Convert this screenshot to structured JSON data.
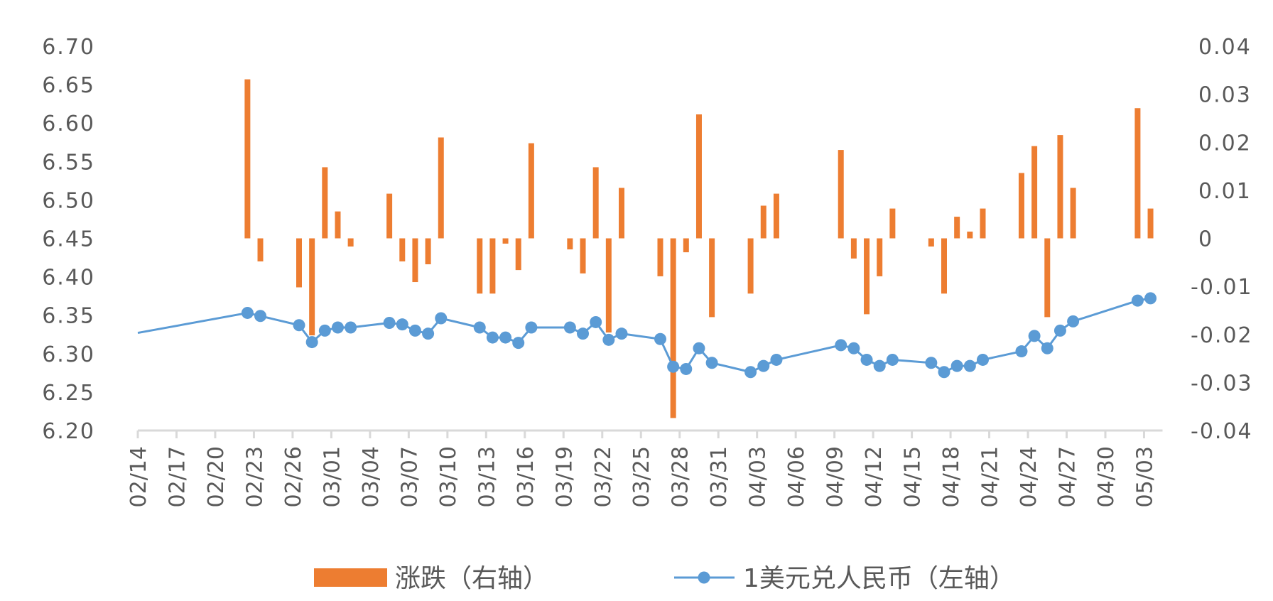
{
  "chart_data": {
    "type": "bar+line",
    "title": "",
    "x_type": "date",
    "x_tick_labels": [
      "02/14",
      "02/17",
      "02/20",
      "02/23",
      "02/26",
      "03/01",
      "03/04",
      "03/07",
      "03/10",
      "03/13",
      "03/16",
      "03/19",
      "03/22",
      "03/25",
      "03/28",
      "03/31",
      "04/03",
      "04/06",
      "04/09",
      "04/12",
      "04/15",
      "04/18",
      "04/21",
      "04/24",
      "04/27",
      "04/30",
      "05/03"
    ],
    "xlim": [
      "02/14",
      "05/03"
    ],
    "left_axis": {
      "ylim": [
        6.2,
        6.7
      ],
      "ticks": [
        "6.70",
        "6.65",
        "6.60",
        "6.55",
        "6.50",
        "6.45",
        "6.40",
        "6.35",
        "6.30",
        "6.25",
        "6.20"
      ]
    },
    "right_axis": {
      "ylim": [
        -0.04,
        0.04
      ],
      "ticks": [
        "0.04",
        "0.03",
        "0.02",
        "0.01",
        "0",
        "-0.01",
        "-0.02",
        "-0.03",
        "-0.04"
      ]
    },
    "grid": false,
    "legend_position": "bottom",
    "series": [
      {
        "name": "涨跌（右轴）",
        "type": "bar",
        "axis": "right",
        "color": "#ED7D31",
        "points": [
          [
            "02/22",
            0.0331
          ],
          [
            "02/23",
            -0.0048
          ],
          [
            "02/26",
            -0.0102
          ],
          [
            "02/27",
            -0.0202
          ],
          [
            "02/28",
            0.0148
          ],
          [
            "03/01",
            0.0056
          ],
          [
            "03/02",
            -0.0017
          ],
          [
            "03/05",
            0.0093
          ],
          [
            "03/06",
            -0.0048
          ],
          [
            "03/07",
            -0.0091
          ],
          [
            "03/08",
            -0.0054
          ],
          [
            "03/09",
            0.021
          ],
          [
            "03/12",
            -0.0115
          ],
          [
            "03/13",
            -0.0115
          ],
          [
            "03/14",
            -0.0011
          ],
          [
            "03/15",
            -0.0066
          ],
          [
            "03/16",
            0.0198
          ],
          [
            "03/19",
            -0.0023
          ],
          [
            "03/20",
            -0.0073
          ],
          [
            "03/21",
            0.0148
          ],
          [
            "03/22",
            -0.0196
          ],
          [
            "03/23",
            0.0105
          ],
          [
            "03/26",
            -0.0079
          ],
          [
            "03/27",
            -0.0374
          ],
          [
            "03/28",
            -0.0029
          ],
          [
            "03/29",
            0.0258
          ],
          [
            "03/30",
            -0.0164
          ],
          [
            "04/02",
            -0.0115
          ],
          [
            "04/03",
            0.0068
          ],
          [
            "04/04",
            0.0093
          ],
          [
            "04/09",
            0.0184
          ],
          [
            "04/10",
            -0.0042
          ],
          [
            "04/11",
            -0.0158
          ],
          [
            "04/12",
            -0.0079
          ],
          [
            "04/13",
            0.0062
          ],
          [
            "04/16",
            -0.0017
          ],
          [
            "04/17",
            -0.0115
          ],
          [
            "04/18",
            0.0045
          ],
          [
            "04/19",
            0.0014
          ],
          [
            "04/20",
            0.0062
          ],
          [
            "04/23",
            0.0136
          ],
          [
            "04/24",
            0.0192
          ],
          [
            "04/25",
            -0.0164
          ],
          [
            "04/26",
            0.0215
          ],
          [
            "04/27",
            0.0105
          ],
          [
            "05/02",
            0.0271
          ],
          [
            "05/03",
            0.0062
          ]
        ]
      },
      {
        "name": "1美元兑人民币（左轴）",
        "type": "line",
        "axis": "left",
        "color": "#5B9BD5",
        "points": [
          [
            "02/14",
            6.327
          ],
          [
            "02/22",
            6.353
          ],
          [
            "02/23",
            6.349
          ],
          [
            "02/26",
            6.337
          ],
          [
            "02/27",
            6.315
          ],
          [
            "02/28",
            6.33
          ],
          [
            "03/01",
            6.334
          ],
          [
            "03/02",
            6.334
          ],
          [
            "03/05",
            6.34
          ],
          [
            "03/06",
            6.338
          ],
          [
            "03/07",
            6.33
          ],
          [
            "03/08",
            6.326
          ],
          [
            "03/09",
            6.346
          ],
          [
            "03/12",
            6.334
          ],
          [
            "03/13",
            6.321
          ],
          [
            "03/14",
            6.321
          ],
          [
            "03/15",
            6.314
          ],
          [
            "03/16",
            6.334
          ],
          [
            "03/19",
            6.334
          ],
          [
            "03/20",
            6.326
          ],
          [
            "03/21",
            6.341
          ],
          [
            "03/22",
            6.318
          ],
          [
            "03/23",
            6.326
          ],
          [
            "03/26",
            6.319
          ],
          [
            "03/27",
            6.283
          ],
          [
            "03/28",
            6.28
          ],
          [
            "03/29",
            6.307
          ],
          [
            "03/30",
            6.288
          ],
          [
            "04/02",
            6.276
          ],
          [
            "04/03",
            6.284
          ],
          [
            "04/04",
            6.292
          ],
          [
            "04/09",
            6.311
          ],
          [
            "04/10",
            6.307
          ],
          [
            "04/11",
            6.292
          ],
          [
            "04/12",
            6.284
          ],
          [
            "04/13",
            6.292
          ],
          [
            "04/16",
            6.288
          ],
          [
            "04/17",
            6.276
          ],
          [
            "04/18",
            6.284
          ],
          [
            "04/19",
            6.284
          ],
          [
            "04/20",
            6.292
          ],
          [
            "04/23",
            6.303
          ],
          [
            "04/24",
            6.323
          ],
          [
            "04/25",
            6.307
          ],
          [
            "04/26",
            6.33
          ],
          [
            "04/27",
            6.342
          ],
          [
            "05/02",
            6.369
          ],
          [
            "05/03",
            6.372
          ]
        ]
      }
    ]
  }
}
